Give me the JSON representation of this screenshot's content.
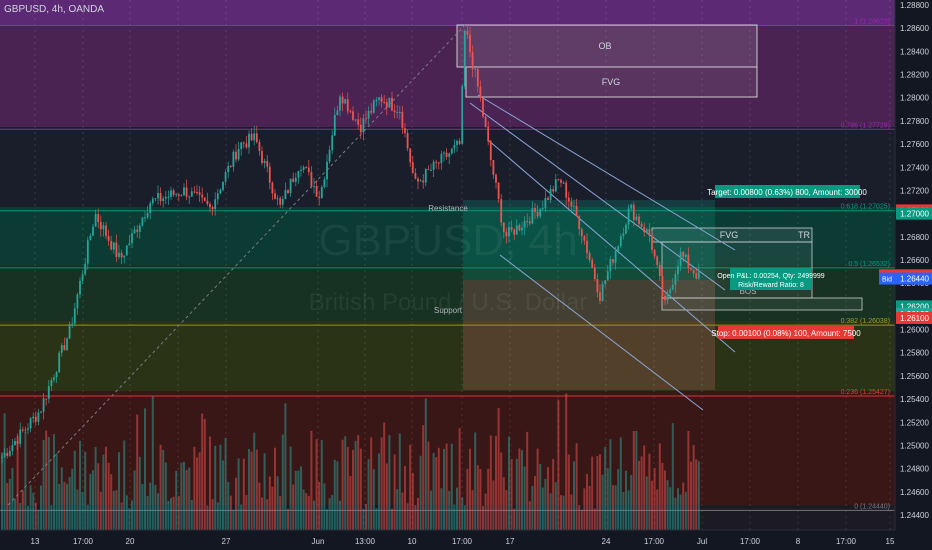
{
  "symbol_header": "GBPUSD, 4h, OANDA",
  "watermark": {
    "symbol": "GBPUSD, 4h",
    "name": "British Pound / U.S. Dollar"
  },
  "colors": {
    "bg": "#131722",
    "up": "#26a69a",
    "down": "#ef5350",
    "purple": "#9c27b0",
    "green": "#089981",
    "red": "#e53935",
    "olive": "#9e9d24",
    "grid": "#2a2e39",
    "axis_text": "#d1d4dc"
  },
  "chart_data": {
    "type": "candlestick",
    "ylim": [
      1.244,
      1.288
    ],
    "x_tick_labels": [
      "13",
      "17:00",
      "20",
      "27",
      "Jun",
      "13:00",
      "10",
      "17:00",
      "17",
      "24",
      "17:00",
      "Jul",
      "17:00",
      "8",
      "17:00",
      "15"
    ],
    "y_tick_labels": [
      "1.28800",
      "1.28600",
      "1.28400",
      "1.28200",
      "1.28000",
      "1.27800",
      "1.27600",
      "1.27400",
      "1.27200",
      "1.27000",
      "1.26800",
      "1.26600",
      "1.26400",
      "1.26200",
      "1.26000",
      "1.25800",
      "1.25600",
      "1.25400",
      "1.25200",
      "1.25000",
      "1.24800",
      "1.24600",
      "1.24400"
    ],
    "fib_levels": [
      {
        "label": "1 (1.28623)",
        "price": 1.28623
      },
      {
        "label": "0.786 (1.27728)",
        "price": 1.27728
      },
      {
        "label": "0.618 (1.27025)",
        "price": 1.27025
      },
      {
        "label": "0.5 (1.26532)",
        "price": 1.26532
      },
      {
        "label": "0.382 (1.26038)",
        "price": 1.26038
      },
      {
        "label": "0.236 (1.25427)",
        "price": 1.25427
      },
      {
        "label": "0 (1.24440)",
        "price": 1.2444
      }
    ],
    "price_path": [
      [
        0,
        1.2488
      ],
      [
        40,
        1.253
      ],
      [
        70,
        1.26
      ],
      [
        95,
        1.27
      ],
      [
        120,
        1.266
      ],
      [
        150,
        1.271
      ],
      [
        185,
        1.272
      ],
      [
        210,
        1.2705
      ],
      [
        240,
        1.276
      ],
      [
        255,
        1.2765
      ],
      [
        280,
        1.2705
      ],
      [
        300,
        1.2745
      ],
      [
        320,
        1.2715
      ],
      [
        340,
        1.2805
      ],
      [
        360,
        1.2775
      ],
      [
        380,
        1.28
      ],
      [
        400,
        1.279
      ],
      [
        415,
        1.2725
      ],
      [
        440,
        1.2745
      ],
      [
        460,
        1.276
      ],
      [
        465,
        1.286
      ],
      [
        480,
        1.28
      ],
      [
        490,
        1.275
      ],
      [
        505,
        1.268
      ],
      [
        520,
        1.269
      ],
      [
        540,
        1.2705
      ],
      [
        560,
        1.273
      ],
      [
        580,
        1.269
      ],
      [
        600,
        1.263
      ],
      [
        630,
        1.2705
      ],
      [
        650,
        1.268
      ],
      [
        665,
        1.262
      ],
      [
        680,
        1.2665
      ],
      [
        700,
        1.2644
      ]
    ],
    "price_labels": [
      {
        "text": "1.27028",
        "price": 1.27028,
        "color": "#e53935"
      },
      {
        "text": "1.27000",
        "price": 1.27,
        "color": "#089981"
      },
      {
        "text": "1.26468",
        "price": 1.26468,
        "color": "#e53935",
        "tag": "Ask"
      },
      {
        "text": "1.26440",
        "price": 1.2644,
        "color": "#2962ff",
        "tag": "Bid"
      },
      {
        "text": "1.26200",
        "price": 1.262,
        "color": "#089981"
      },
      {
        "text": "1.26133",
        "price": 1.26133,
        "color": "#26a69a"
      },
      {
        "text": "1.26100",
        "price": 1.261,
        "color": "#e53935"
      }
    ],
    "annotations": {
      "ob": "OB",
      "fvg_top": "FVG",
      "fvg_mid": "FVG",
      "tr": "TR",
      "resistance": "Resistance",
      "support": "Support",
      "bos": "BOS"
    },
    "trade": {
      "target_text": "Target: 0.00800 (0.63%) 800, Amount: 30000",
      "open_text": "Open P&L: 0.00254, Qty: 2499999",
      "rr_text": "Risk/Reward Ratio: 8",
      "stop_text": "Stop: 0.00100 (0.08%) 100, Amount: 7500"
    }
  }
}
